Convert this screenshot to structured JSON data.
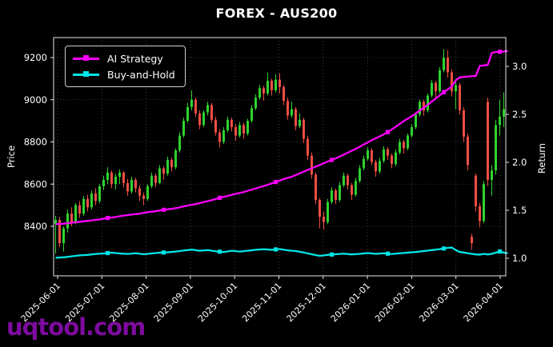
{
  "header": {
    "title": "FOREX - AUS200"
  },
  "watermark": {
    "text": "uqtool.com",
    "color": "#7d0c9e"
  },
  "axes": {
    "price_label": "Price",
    "return_label": "Return",
    "price_ticks": [
      "8400",
      "8600",
      "8800",
      "9000",
      "9200"
    ],
    "return_ticks": [
      "1.0",
      "1.5",
      "2.0",
      "2.5",
      "3.0"
    ],
    "date_ticks": [
      "2025-06-01",
      "2025-07-01",
      "2025-08-01",
      "2025-09-01",
      "2025-10-01",
      "2025-11-01",
      "2025-12-01",
      "2026-01-01",
      "2026-02-01",
      "2026-03-01",
      "2026-04-01"
    ]
  },
  "legend": {
    "items": [
      {
        "label": "AI Strategy",
        "color": "#ff00ff"
      },
      {
        "label": "Buy-and-Hold",
        "color": "#00e5e5"
      }
    ]
  },
  "colors": {
    "background": "#000000",
    "text": "#ffffff",
    "grid": "#4a4a4a",
    "spine": "#e8e8e8",
    "candle_up": "#2fd32f",
    "candle_down": "#ef4e44",
    "ai_strategy": "#ff00ff",
    "buy_and_hold": "#00e5e5",
    "watermark": "#7d0c9e"
  },
  "chart_data": {
    "type": "candlestick",
    "title": "FOREX - AUS200",
    "price_axis": {
      "label": "Price",
      "ticks": [
        8400,
        8600,
        8800,
        9000,
        9200
      ],
      "ylim": [
        8165,
        9295
      ]
    },
    "return_axis": {
      "label": "Return",
      "ticks": [
        1.0,
        1.5,
        2.0,
        2.5,
        3.0
      ],
      "ylim": [
        0.82,
        3.3
      ]
    },
    "x_ticks": [
      "2025-06-01",
      "2025-07-01",
      "2025-08-01",
      "2025-09-01",
      "2025-10-01",
      "2025-11-01",
      "2025-12-01",
      "2026-01-01",
      "2026-02-01",
      "2026-03-01",
      "2026-04-01"
    ],
    "legend_position": "upper left",
    "grid": true,
    "candles_ohlc": [
      [
        8410,
        8450,
        8270,
        8430
      ],
      [
        8430,
        8445,
        8300,
        8320
      ],
      [
        8320,
        8400,
        8280,
        8390
      ],
      [
        8390,
        8480,
        8370,
        8460
      ],
      [
        8460,
        8490,
        8400,
        8420
      ],
      [
        8420,
        8510,
        8410,
        8500
      ],
      [
        8500,
        8520,
        8440,
        8460
      ],
      [
        8460,
        8545,
        8450,
        8530
      ],
      [
        8530,
        8550,
        8470,
        8490
      ],
      [
        8490,
        8570,
        8480,
        8555
      ],
      [
        8555,
        8580,
        8500,
        8520
      ],
      [
        8520,
        8600,
        8510,
        8590
      ],
      [
        8590,
        8640,
        8570,
        8620
      ],
      [
        8620,
        8680,
        8600,
        8655
      ],
      [
        8655,
        8665,
        8580,
        8600
      ],
      [
        8600,
        8650,
        8575,
        8635
      ],
      [
        8635,
        8670,
        8600,
        8655
      ],
      [
        8655,
        8660,
        8585,
        8605
      ],
      [
        8605,
        8625,
        8545,
        8565
      ],
      [
        8565,
        8635,
        8555,
        8620
      ],
      [
        8620,
        8630,
        8560,
        8580
      ],
      [
        8580,
        8595,
        8520,
        8545
      ],
      [
        8545,
        8560,
        8500,
        8530
      ],
      [
        8530,
        8600,
        8520,
        8590
      ],
      [
        8590,
        8655,
        8580,
        8640
      ],
      [
        8640,
        8650,
        8585,
        8605
      ],
      [
        8605,
        8690,
        8600,
        8675
      ],
      [
        8675,
        8685,
        8620,
        8650
      ],
      [
        8650,
        8730,
        8640,
        8715
      ],
      [
        8715,
        8725,
        8660,
        8680
      ],
      [
        8680,
        8770,
        8670,
        8760
      ],
      [
        8760,
        8845,
        8750,
        8830
      ],
      [
        8830,
        8915,
        8820,
        8900
      ],
      [
        8900,
        8985,
        8890,
        8965
      ],
      [
        8965,
        9045,
        8950,
        9000
      ],
      [
        9000,
        9010,
        8920,
        8935
      ],
      [
        8935,
        8950,
        8860,
        8880
      ],
      [
        8880,
        8950,
        8870,
        8940
      ],
      [
        8940,
        8990,
        8925,
        8975
      ],
      [
        8975,
        8985,
        8890,
        8905
      ],
      [
        8905,
        8920,
        8830,
        8845
      ],
      [
        8845,
        8860,
        8775,
        8800
      ],
      [
        8800,
        8870,
        8790,
        8855
      ],
      [
        8855,
        8920,
        8845,
        8905
      ],
      [
        8905,
        8915,
        8850,
        8870
      ],
      [
        8870,
        8885,
        8805,
        8830
      ],
      [
        8830,
        8895,
        8820,
        8880
      ],
      [
        8880,
        8890,
        8815,
        8840
      ],
      [
        8840,
        8910,
        8830,
        8900
      ],
      [
        8900,
        8975,
        8890,
        8960
      ],
      [
        8960,
        9025,
        8950,
        9010
      ],
      [
        9010,
        9070,
        9000,
        9055
      ],
      [
        9055,
        9065,
        8995,
        9030
      ],
      [
        9030,
        9130,
        9020,
        9090
      ],
      [
        9090,
        9100,
        9020,
        9045
      ],
      [
        9045,
        9120,
        9035,
        9095
      ],
      [
        9095,
        9125,
        9030,
        9060
      ],
      [
        9060,
        9070,
        8975,
        8995
      ],
      [
        8995,
        9010,
        8905,
        8925
      ],
      [
        8925,
        8990,
        8915,
        8955
      ],
      [
        8955,
        8965,
        8855,
        8875
      ],
      [
        8875,
        8935,
        8865,
        8905
      ],
      [
        8905,
        8915,
        8795,
        8815
      ],
      [
        8815,
        8830,
        8715,
        8735
      ],
      [
        8735,
        8750,
        8625,
        8645
      ],
      [
        8645,
        8655,
        8505,
        8525
      ],
      [
        8525,
        8535,
        8390,
        8445
      ],
      [
        8445,
        8470,
        8385,
        8420
      ],
      [
        8420,
        8530,
        8410,
        8515
      ],
      [
        8515,
        8585,
        8505,
        8570
      ],
      [
        8570,
        8580,
        8505,
        8525
      ],
      [
        8525,
        8610,
        8515,
        8595
      ],
      [
        8595,
        8655,
        8585,
        8640
      ],
      [
        8640,
        8650,
        8575,
        8595
      ],
      [
        8595,
        8605,
        8525,
        8550
      ],
      [
        8550,
        8630,
        8540,
        8615
      ],
      [
        8615,
        8690,
        8605,
        8675
      ],
      [
        8675,
        8735,
        8665,
        8720
      ],
      [
        8720,
        8775,
        8710,
        8760
      ],
      [
        8760,
        8770,
        8690,
        8705
      ],
      [
        8705,
        8715,
        8635,
        8660
      ],
      [
        8660,
        8725,
        8650,
        8710
      ],
      [
        8710,
        8780,
        8700,
        8765
      ],
      [
        8765,
        8775,
        8715,
        8735
      ],
      [
        8735,
        8745,
        8675,
        8695
      ],
      [
        8695,
        8765,
        8685,
        8750
      ],
      [
        8750,
        8815,
        8740,
        8800
      ],
      [
        8800,
        8810,
        8745,
        8770
      ],
      [
        8770,
        8840,
        8760,
        8830
      ],
      [
        8830,
        8885,
        8820,
        8870
      ],
      [
        8870,
        8940,
        8860,
        8930
      ],
      [
        8930,
        9000,
        8920,
        8990
      ],
      [
        8990,
        9000,
        8925,
        8950
      ],
      [
        8950,
        9030,
        8940,
        9020
      ],
      [
        9020,
        9095,
        9010,
        9080
      ],
      [
        9080,
        9090,
        9005,
        9040
      ],
      [
        9040,
        9155,
        9030,
        9140
      ],
      [
        9140,
        9240,
        9130,
        9200
      ],
      [
        9200,
        9235,
        9105,
        9130
      ],
      [
        9130,
        9145,
        9015,
        9040
      ],
      [
        9040,
        9100,
        8955,
        9070
      ],
      [
        9070,
        9080,
        8930,
        8950
      ],
      [
        8950,
        8965,
        8800,
        8825
      ],
      [
        8825,
        8840,
        8665,
        8690
      ],
      [
        8350,
        8365,
        8290,
        8320
      ],
      [
        8640,
        8650,
        8470,
        8495
      ],
      [
        8495,
        8510,
        8395,
        8425
      ],
      [
        8425,
        8615,
        8415,
        8600
      ],
      [
        8990,
        9010,
        8590,
        8620
      ],
      [
        8620,
        8690,
        8545,
        8665
      ],
      [
        8665,
        8905,
        8645,
        8880
      ],
      [
        8880,
        9000,
        8830,
        8920
      ],
      [
        8920,
        9035,
        8870,
        8955
      ]
    ],
    "series": [
      {
        "name": "AI Strategy",
        "axis": "return",
        "color": "#ff00ff",
        "points": [
          [
            0,
            1.355
          ],
          [
            2,
            1.36
          ],
          [
            3,
            1.365
          ],
          [
            5,
            1.375
          ],
          [
            7,
            1.385
          ],
          [
            9,
            1.395
          ],
          [
            11,
            1.405
          ],
          [
            13,
            1.42
          ],
          [
            15,
            1.43
          ],
          [
            17,
            1.445
          ],
          [
            19,
            1.455
          ],
          [
            21,
            1.465
          ],
          [
            23,
            1.48
          ],
          [
            25,
            1.49
          ],
          [
            27,
            1.505
          ],
          [
            29,
            1.515
          ],
          [
            31,
            1.53
          ],
          [
            33,
            1.55
          ],
          [
            35,
            1.565
          ],
          [
            37,
            1.585
          ],
          [
            39,
            1.605
          ],
          [
            41,
            1.63
          ],
          [
            43,
            1.65
          ],
          [
            45,
            1.672
          ],
          [
            47,
            1.69
          ],
          [
            49,
            1.715
          ],
          [
            51,
            1.74
          ],
          [
            53,
            1.765
          ],
          [
            55,
            1.795
          ],
          [
            57,
            1.825
          ],
          [
            59,
            1.85
          ],
          [
            61,
            1.885
          ],
          [
            63,
            1.92
          ],
          [
            65,
            1.955
          ],
          [
            67,
            1.99
          ],
          [
            69,
            2.025
          ],
          [
            71,
            2.06
          ],
          [
            73,
            2.1
          ],
          [
            75,
            2.14
          ],
          [
            77,
            2.185
          ],
          [
            79,
            2.23
          ],
          [
            81,
            2.27
          ],
          [
            83,
            2.315
          ],
          [
            85,
            2.37
          ],
          [
            87,
            2.43
          ],
          [
            89,
            2.48
          ],
          [
            91,
            2.54
          ],
          [
            93,
            2.6
          ],
          [
            95,
            2.665
          ],
          [
            97,
            2.73
          ],
          [
            99,
            2.79
          ],
          [
            100,
            2.855
          ],
          [
            101,
            2.885
          ],
          [
            103,
            2.895
          ],
          [
            105,
            2.9
          ],
          [
            106,
            3.005
          ],
          [
            108,
            3.015
          ],
          [
            109,
            3.14
          ],
          [
            110,
            3.15
          ],
          [
            112,
            3.155
          ],
          [
            113,
            3.16
          ]
        ]
      },
      {
        "name": "Buy-and-Hold",
        "axis": "return",
        "color": "#00e5e5",
        "points": [
          [
            0,
            1.005
          ],
          [
            2,
            1.01
          ],
          [
            4,
            1.02
          ],
          [
            6,
            1.03
          ],
          [
            8,
            1.035
          ],
          [
            10,
            1.045
          ],
          [
            12,
            1.05
          ],
          [
            14,
            1.058
          ],
          [
            16,
            1.05
          ],
          [
            18,
            1.045
          ],
          [
            20,
            1.052
          ],
          [
            22,
            1.042
          ],
          [
            24,
            1.05
          ],
          [
            26,
            1.058
          ],
          [
            28,
            1.062
          ],
          [
            30,
            1.07
          ],
          [
            32,
            1.08
          ],
          [
            34,
            1.09
          ],
          [
            36,
            1.078
          ],
          [
            38,
            1.085
          ],
          [
            40,
            1.072
          ],
          [
            42,
            1.065
          ],
          [
            44,
            1.078
          ],
          [
            46,
            1.07
          ],
          [
            48,
            1.078
          ],
          [
            50,
            1.088
          ],
          [
            52,
            1.094
          ],
          [
            54,
            1.088
          ],
          [
            56,
            1.096
          ],
          [
            58,
            1.082
          ],
          [
            60,
            1.075
          ],
          [
            62,
            1.06
          ],
          [
            64,
            1.042
          ],
          [
            66,
            1.025
          ],
          [
            68,
            1.035
          ],
          [
            70,
            1.042
          ],
          [
            72,
            1.048
          ],
          [
            74,
            1.04
          ],
          [
            76,
            1.046
          ],
          [
            78,
            1.054
          ],
          [
            80,
            1.046
          ],
          [
            82,
            1.052
          ],
          [
            84,
            1.044
          ],
          [
            86,
            1.052
          ],
          [
            88,
            1.058
          ],
          [
            90,
            1.065
          ],
          [
            92,
            1.075
          ],
          [
            94,
            1.085
          ],
          [
            96,
            1.095
          ],
          [
            98,
            1.108
          ],
          [
            99,
            1.112
          ],
          [
            100,
            1.085
          ],
          [
            101,
            1.065
          ],
          [
            102,
            1.06
          ],
          [
            103,
            1.052
          ],
          [
            104,
            1.046
          ],
          [
            105,
            1.04
          ],
          [
            106,
            1.038
          ],
          [
            107,
            1.046
          ],
          [
            108,
            1.04
          ],
          [
            109,
            1.046
          ],
          [
            110,
            1.058
          ],
          [
            111,
            1.07
          ],
          [
            112,
            1.058
          ],
          [
            113,
            1.052
          ]
        ]
      }
    ],
    "marker_every": {
      "start": 13,
      "step": 14
    }
  }
}
